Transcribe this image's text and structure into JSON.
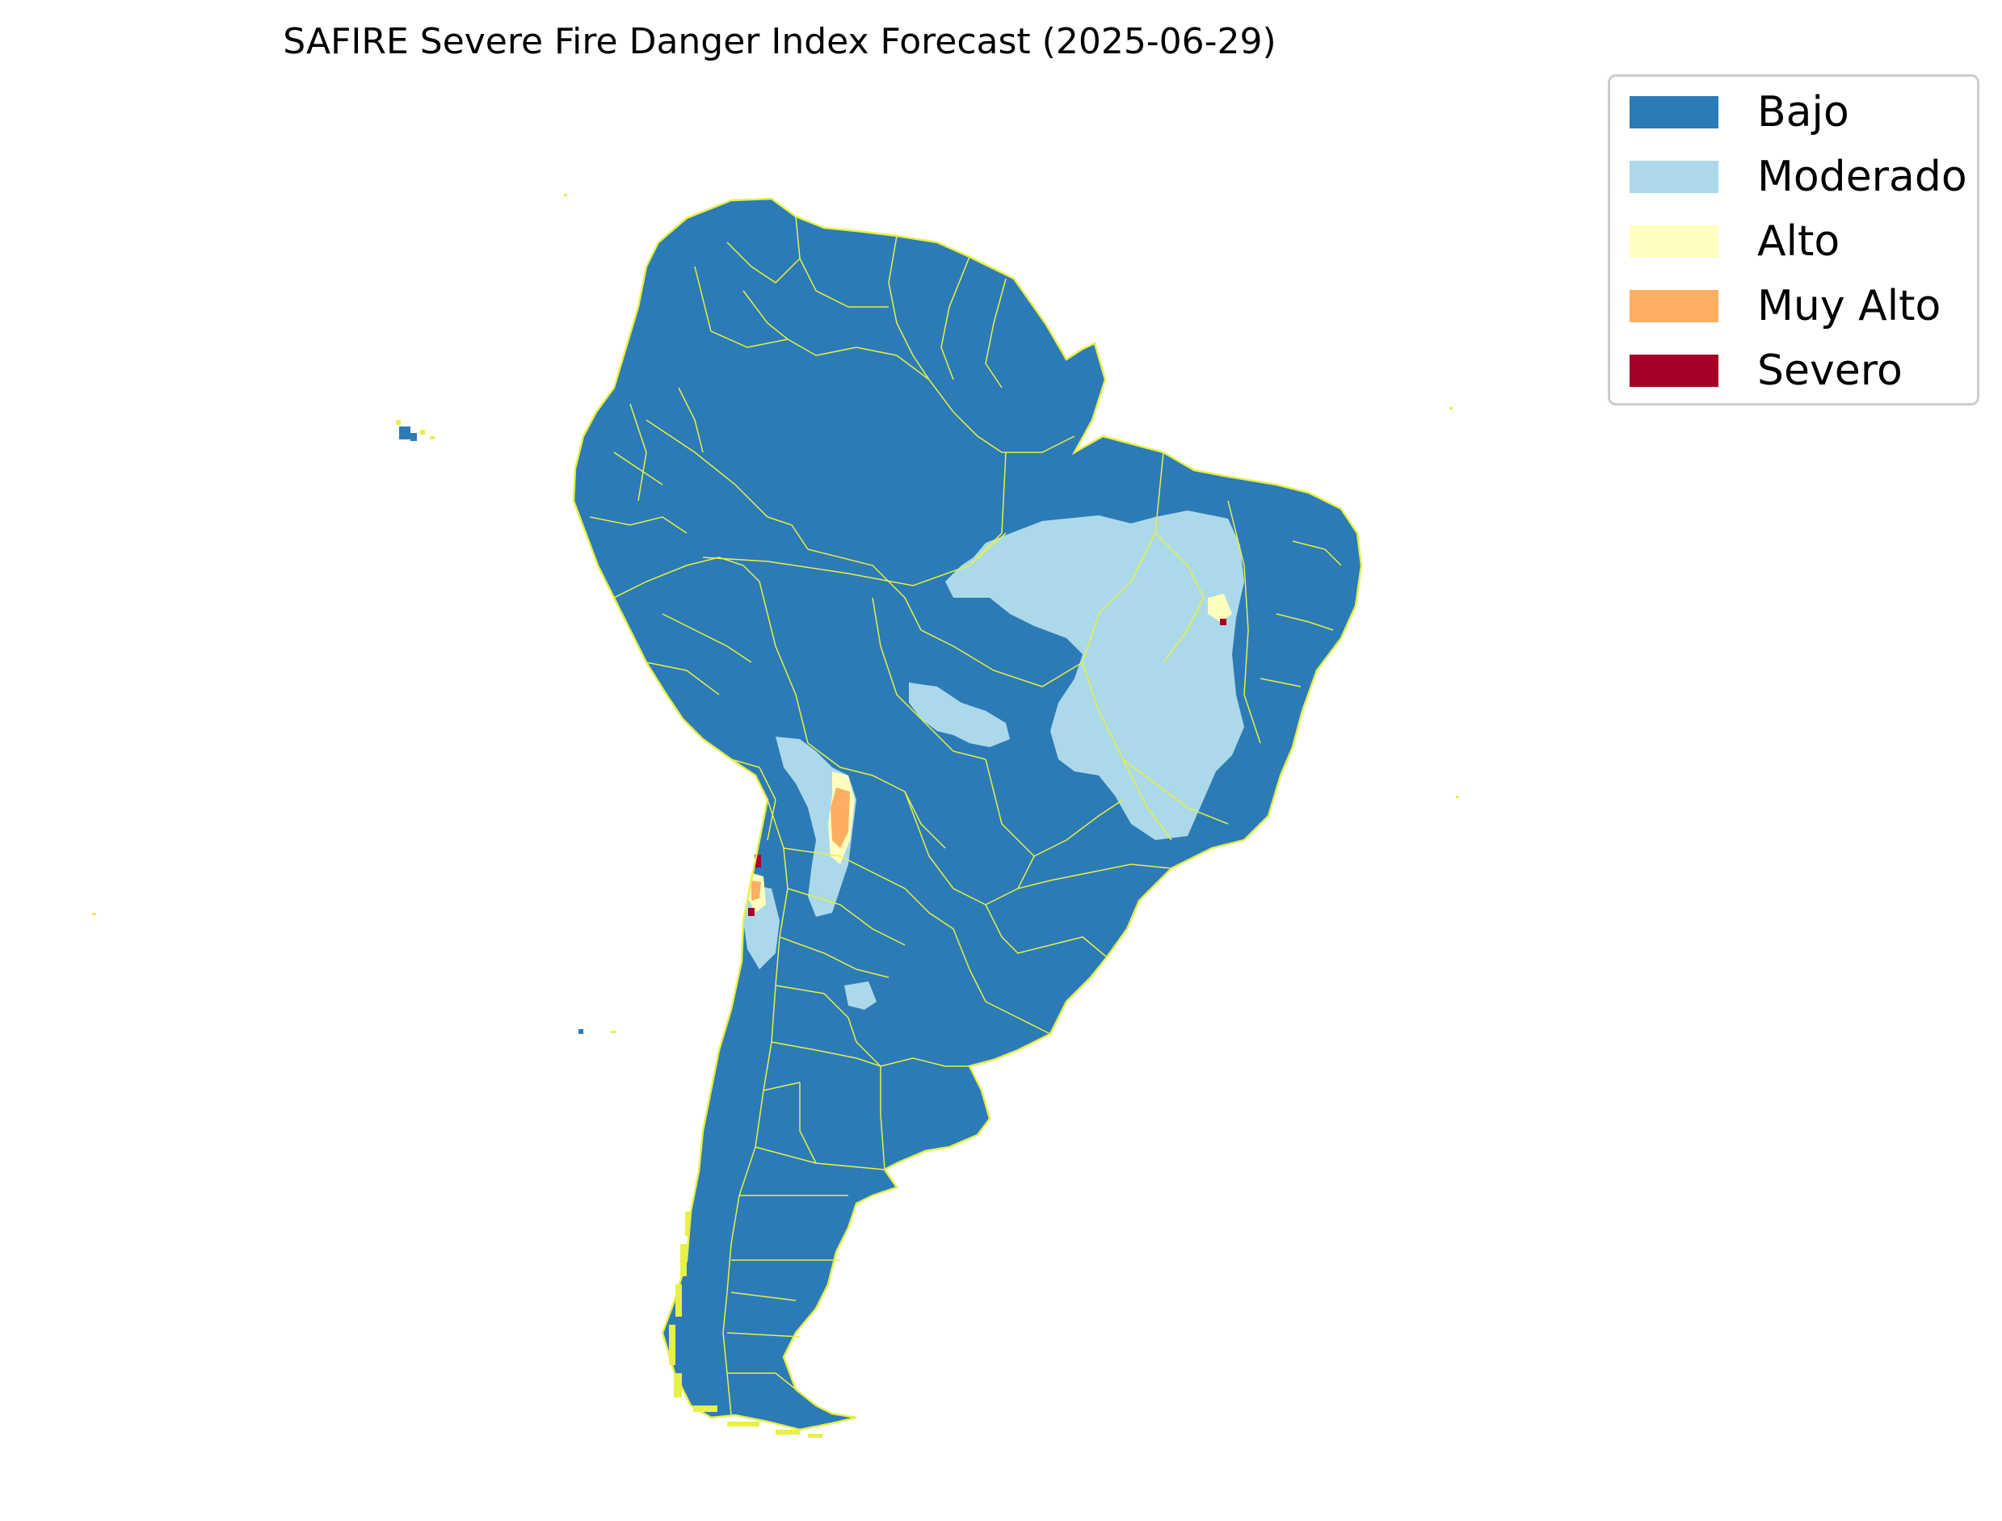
{
  "title": "SAFIRE Severe Fire Danger Index Forecast (2025-06-29)",
  "legend": {
    "items": [
      {
        "label": "Bajo",
        "color": "#2c7bb6"
      },
      {
        "label": "Moderado",
        "color": "#abd9e9"
      },
      {
        "label": "Alto",
        "color": "#ffffbf"
      },
      {
        "label": "Muy Alto",
        "color": "#fdae61"
      },
      {
        "label": "Severo",
        "color": "#a50026"
      }
    ]
  },
  "map": {
    "region": "South America",
    "border_color": "#e6f046",
    "dominant_category": "Bajo"
  }
}
